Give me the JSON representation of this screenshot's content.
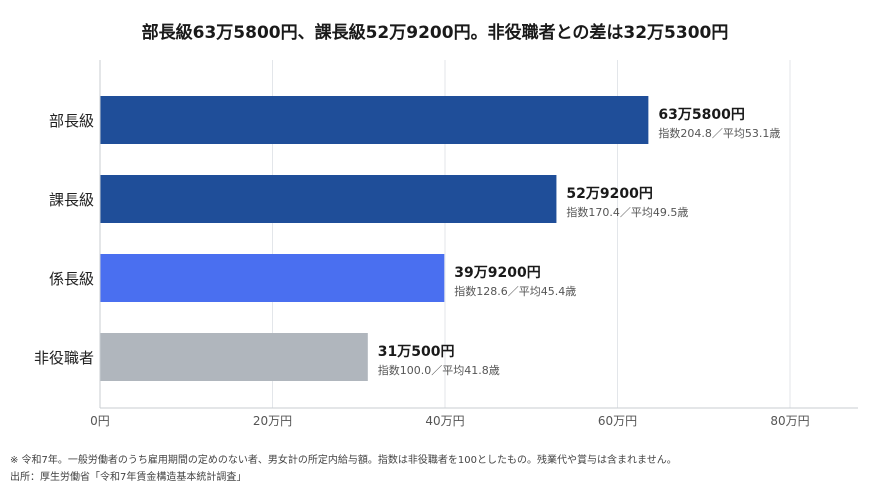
{
  "title": "部長級63万5800円、課長級52万9200円。非役職者との差は32万5300円",
  "chart_data": {
    "type": "bar",
    "orientation": "horizontal",
    "categories": [
      "部長級",
      "課長級",
      "係長級",
      "非役職者"
    ],
    "values": [
      63.58,
      52.92,
      39.92,
      31.05
    ],
    "value_labels": [
      "63万5800円",
      "52万9200円",
      "39万9200円",
      "31万500円"
    ],
    "sub_labels": [
      "指数204.8／平均53.1歳",
      "指数170.4／平均49.5歳",
      "指数128.6／平均45.4歳",
      "指数100.0／平均41.8歳"
    ],
    "bar_colors": [
      "#1f4e99",
      "#1f4e99",
      "#4a6ff0",
      "#b0b6bd"
    ],
    "xlim": [
      0,
      88
    ],
    "xticks": [
      0,
      20,
      40,
      60,
      80
    ],
    "xtick_labels": [
      "0円",
      "20万円",
      "40万円",
      "60万円",
      "80万円"
    ],
    "grid": true,
    "legend": "none"
  },
  "footnotes": {
    "note": "※ 令和7年。一般労働者のうち雇用期間の定めのない者、男女計の所定内給与額。指数は非役職者を100としたもの。残業代や賞与は含まれません。",
    "source": "出所：厚生労働省「令和7年賃金構造基本統計調査」"
  }
}
